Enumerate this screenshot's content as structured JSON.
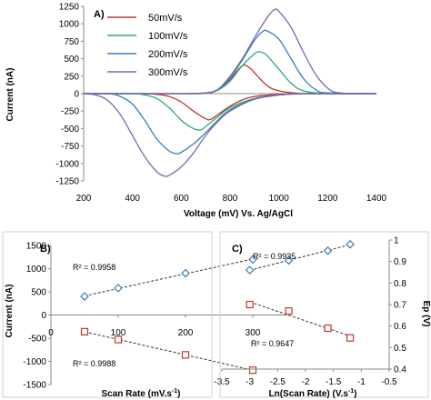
{
  "chart_data": [
    {
      "panel_label": "A)",
      "type": "line",
      "xlabel": "Voltage (mV) Vs. Ag/AgCl",
      "ylabel": "Current (nA)",
      "xlim": [
        200,
        1400
      ],
      "ylim": [
        -1250,
        1250
      ],
      "xticks": [
        200,
        400,
        600,
        800,
        1000,
        1200,
        1400
      ],
      "yticks": [
        -1250,
        -1000,
        -750,
        -500,
        -250,
        0,
        250,
        500,
        750,
        1000,
        1250
      ],
      "legend_position": "top-left",
      "series": [
        {
          "name": "50mV/s",
          "color": "#c0392b",
          "forward": [
            [
              200,
              0
            ],
            [
              300,
              0
            ],
            [
              400,
              0
            ],
            [
              500,
              0
            ],
            [
              600,
              0
            ],
            [
              700,
              5
            ],
            [
              750,
              60
            ],
            [
              800,
              200
            ],
            [
              850,
              400
            ],
            [
              880,
              370
            ],
            [
              900,
              300
            ],
            [
              950,
              120
            ],
            [
              1000,
              40
            ],
            [
              1100,
              0
            ],
            [
              1200,
              0
            ],
            [
              1400,
              0
            ]
          ],
          "reverse": [
            [
              1400,
              0
            ],
            [
              1200,
              0
            ],
            [
              1100,
              0
            ],
            [
              1000,
              -10
            ],
            [
              900,
              -40
            ],
            [
              850,
              -90
            ],
            [
              800,
              -180
            ],
            [
              750,
              -300
            ],
            [
              720,
              -370
            ],
            [
              700,
              -360
            ],
            [
              650,
              -250
            ],
            [
              600,
              -120
            ],
            [
              550,
              -40
            ],
            [
              500,
              -10
            ],
            [
              400,
              0
            ],
            [
              300,
              0
            ],
            [
              200,
              0
            ]
          ]
        },
        {
          "name": "100mV/s",
          "color": "#2aa876",
          "forward": [
            [
              200,
              0
            ],
            [
              400,
              0
            ],
            [
              600,
              0
            ],
            [
              700,
              5
            ],
            [
              750,
              50
            ],
            [
              800,
              180
            ],
            [
              850,
              400
            ],
            [
              900,
              570
            ],
            [
              920,
              600
            ],
            [
              950,
              550
            ],
            [
              1000,
              350
            ],
            [
              1050,
              150
            ],
            [
              1100,
              40
            ],
            [
              1200,
              0
            ],
            [
              1400,
              0
            ]
          ],
          "reverse": [
            [
              1400,
              0
            ],
            [
              1200,
              0
            ],
            [
              1100,
              0
            ],
            [
              1000,
              -20
            ],
            [
              900,
              -70
            ],
            [
              800,
              -200
            ],
            [
              750,
              -330
            ],
            [
              700,
              -470
            ],
            [
              680,
              -520
            ],
            [
              650,
              -500
            ],
            [
              600,
              -380
            ],
            [
              550,
              -200
            ],
            [
              500,
              -70
            ],
            [
              450,
              -20
            ],
            [
              400,
              0
            ],
            [
              200,
              0
            ]
          ]
        },
        {
          "name": "200mV/s",
          "color": "#3a7fb8",
          "forward": [
            [
              200,
              0
            ],
            [
              400,
              0
            ],
            [
              600,
              0
            ],
            [
              700,
              10
            ],
            [
              750,
              60
            ],
            [
              800,
              220
            ],
            [
              850,
              480
            ],
            [
              900,
              760
            ],
            [
              930,
              880
            ],
            [
              950,
              900
            ],
            [
              1000,
              780
            ],
            [
              1050,
              500
            ],
            [
              1100,
              220
            ],
            [
              1150,
              60
            ],
            [
              1200,
              10
            ],
            [
              1400,
              0
            ]
          ],
          "reverse": [
            [
              1400,
              0
            ],
            [
              1200,
              0
            ],
            [
              1100,
              0
            ],
            [
              1000,
              -20
            ],
            [
              900,
              -80
            ],
            [
              800,
              -230
            ],
            [
              750,
              -380
            ],
            [
              700,
              -560
            ],
            [
              650,
              -720
            ],
            [
              600,
              -840
            ],
            [
              580,
              -860
            ],
            [
              550,
              -820
            ],
            [
              500,
              -650
            ],
            [
              450,
              -380
            ],
            [
              400,
              -150
            ],
            [
              350,
              -40
            ],
            [
              300,
              0
            ],
            [
              200,
              0
            ]
          ]
        },
        {
          "name": "300mV/s",
          "color": "#7b68b0",
          "forward": [
            [
              200,
              0
            ],
            [
              400,
              0
            ],
            [
              600,
              0
            ],
            [
              700,
              10
            ],
            [
              750,
              60
            ],
            [
              800,
              250
            ],
            [
              850,
              500
            ],
            [
              900,
              800
            ],
            [
              950,
              1080
            ],
            [
              980,
              1200
            ],
            [
              1000,
              1180
            ],
            [
              1050,
              950
            ],
            [
              1100,
              600
            ],
            [
              1150,
              280
            ],
            [
              1200,
              80
            ],
            [
              1250,
              10
            ],
            [
              1400,
              0
            ]
          ],
          "reverse": [
            [
              1400,
              0
            ],
            [
              1250,
              0
            ],
            [
              1100,
              0
            ],
            [
              1000,
              -20
            ],
            [
              900,
              -80
            ],
            [
              800,
              -250
            ],
            [
              750,
              -400
            ],
            [
              700,
              -600
            ],
            [
              650,
              -850
            ],
            [
              600,
              -1050
            ],
            [
              550,
              -1170
            ],
            [
              530,
              -1180
            ],
            [
              500,
              -1120
            ],
            [
              450,
              -900
            ],
            [
              400,
              -600
            ],
            [
              350,
              -300
            ],
            [
              300,
              -100
            ],
            [
              250,
              -20
            ],
            [
              200,
              0
            ]
          ]
        }
      ]
    },
    {
      "panel_label": "B)",
      "type": "scatter",
      "xlabel": "Scan Rate (mV.s-1)",
      "ylabel": "Current (nA)",
      "xlim": [
        0,
        350
      ],
      "ylim": [
        -1500,
        1500
      ],
      "xticks": [
        0,
        100,
        200,
        300
      ],
      "yticks": [
        -1500,
        -1000,
        -500,
        0,
        500,
        1000,
        1500
      ],
      "series": [
        {
          "marker": "diamond",
          "color": "#3a7fb8",
          "x": [
            50,
            100,
            200,
            300
          ],
          "y": [
            400,
            580,
            900,
            1200
          ],
          "annotation": "R² = 0.9958"
        },
        {
          "marker": "square",
          "color": "#c0392b",
          "x": [
            50,
            100,
            200,
            300
          ],
          "y": [
            -360,
            -530,
            -860,
            -1190
          ],
          "annotation": "R² = 0.9988"
        }
      ]
    },
    {
      "panel_label": "C)",
      "type": "scatter",
      "xlabel": "Ln(Scan Rate) (V.s-1)",
      "ylabel": "Ep (V)",
      "xlim": [
        -3.5,
        -0.5
      ],
      "ylim": [
        0.4,
        1.0
      ],
      "xticks": [
        -3.5,
        -3,
        -2.5,
        -2,
        -1.5,
        -1,
        -0.5
      ],
      "yticks": [
        0.4,
        0.5,
        0.6,
        0.7,
        0.8,
        0.9,
        1
      ],
      "series": [
        {
          "marker": "diamond",
          "color": "#3a7fb8",
          "x": [
            -3.0,
            -2.3,
            -1.6,
            -1.2
          ],
          "y": [
            0.86,
            0.905,
            0.95,
            0.98
          ],
          "annotation": "R² = 0.9935"
        },
        {
          "marker": "square",
          "color": "#c0392b",
          "x": [
            -3.0,
            -2.3,
            -1.6,
            -1.2
          ],
          "y": [
            0.7,
            0.67,
            0.59,
            0.545
          ],
          "annotation": "R² = 0.9647"
        }
      ]
    }
  ]
}
